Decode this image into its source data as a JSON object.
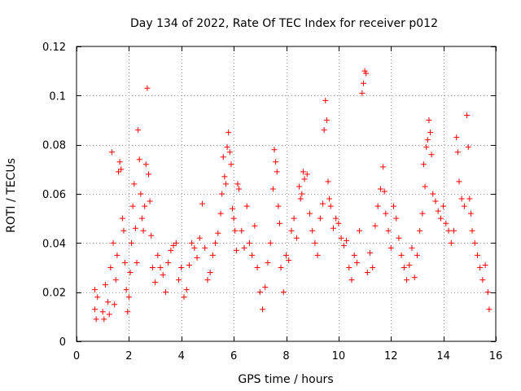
{
  "chart_data": {
    "type": "scatter",
    "title": "Day 134 of 2022, Rate Of TEC Index for receiver p012",
    "xlabel": "GPS time / hours",
    "ylabel": "ROTI / TECUs",
    "xlim": [
      0,
      16
    ],
    "ylim": [
      0,
      0.12
    ],
    "x_ticks": [
      0,
      2,
      4,
      6,
      8,
      10,
      12,
      14,
      16
    ],
    "x_tick_labels": [
      "0",
      "2",
      "4",
      "6",
      "8",
      "10",
      "12",
      "14",
      "16"
    ],
    "y_ticks": [
      0,
      0.02,
      0.04,
      0.06,
      0.08,
      0.1,
      0.12
    ],
    "y_tick_labels": [
      "0",
      "0.02",
      "0.04",
      "0.06",
      "0.08",
      "0.1",
      "0.12"
    ],
    "grid": true,
    "marker": "plus",
    "color": "#ff0000",
    "series": [
      {
        "name": "p012",
        "points": [
          [
            0.7,
            0.021
          ],
          [
            0.7,
            0.013
          ],
          [
            0.75,
            0.009
          ],
          [
            0.8,
            0.018
          ],
          [
            1.0,
            0.012
          ],
          [
            1.05,
            0.009
          ],
          [
            1.1,
            0.023
          ],
          [
            1.2,
            0.016
          ],
          [
            1.25,
            0.011
          ],
          [
            1.3,
            0.03
          ],
          [
            1.35,
            0.077
          ],
          [
            1.4,
            0.04
          ],
          [
            1.45,
            0.015
          ],
          [
            1.5,
            0.025
          ],
          [
            1.55,
            0.035
          ],
          [
            1.6,
            0.069
          ],
          [
            1.65,
            0.073
          ],
          [
            1.7,
            0.07
          ],
          [
            1.75,
            0.05
          ],
          [
            1.8,
            0.045
          ],
          [
            1.85,
            0.032
          ],
          [
            1.9,
            0.021
          ],
          [
            1.95,
            0.012
          ],
          [
            2.0,
            0.018
          ],
          [
            2.05,
            0.028
          ],
          [
            2.1,
            0.04
          ],
          [
            2.15,
            0.055
          ],
          [
            2.2,
            0.064
          ],
          [
            2.25,
            0.046
          ],
          [
            2.3,
            0.032
          ],
          [
            2.35,
            0.086
          ],
          [
            2.4,
            0.074
          ],
          [
            2.45,
            0.06
          ],
          [
            2.5,
            0.05
          ],
          [
            2.55,
            0.045
          ],
          [
            2.6,
            0.055
          ],
          [
            2.65,
            0.072
          ],
          [
            2.7,
            0.103
          ],
          [
            2.75,
            0.068
          ],
          [
            2.8,
            0.057
          ],
          [
            2.85,
            0.043
          ],
          [
            2.9,
            0.03
          ],
          [
            3.0,
            0.024
          ],
          [
            3.1,
            0.035
          ],
          [
            3.2,
            0.03
          ],
          [
            3.3,
            0.027
          ],
          [
            3.4,
            0.02
          ],
          [
            3.5,
            0.032
          ],
          [
            3.6,
            0.037
          ],
          [
            3.7,
            0.039
          ],
          [
            3.8,
            0.04
          ],
          [
            3.9,
            0.025
          ],
          [
            4.0,
            0.03
          ],
          [
            4.1,
            0.018
          ],
          [
            4.2,
            0.021
          ],
          [
            4.3,
            0.031
          ],
          [
            4.4,
            0.04
          ],
          [
            4.5,
            0.038
          ],
          [
            4.6,
            0.034
          ],
          [
            4.7,
            0.042
          ],
          [
            4.8,
            0.056
          ],
          [
            4.9,
            0.038
          ],
          [
            5.0,
            0.025
          ],
          [
            5.1,
            0.028
          ],
          [
            5.2,
            0.035
          ],
          [
            5.3,
            0.04
          ],
          [
            5.4,
            0.044
          ],
          [
            5.5,
            0.052
          ],
          [
            5.55,
            0.06
          ],
          [
            5.6,
            0.075
          ],
          [
            5.65,
            0.067
          ],
          [
            5.7,
            0.064
          ],
          [
            5.75,
            0.079
          ],
          [
            5.8,
            0.085
          ],
          [
            5.85,
            0.077
          ],
          [
            5.9,
            0.072
          ],
          [
            5.95,
            0.054
          ],
          [
            6.0,
            0.05
          ],
          [
            6.05,
            0.045
          ],
          [
            6.1,
            0.037
          ],
          [
            6.15,
            0.064
          ],
          [
            6.2,
            0.062
          ],
          [
            6.3,
            0.045
          ],
          [
            6.4,
            0.038
          ],
          [
            6.5,
            0.055
          ],
          [
            6.6,
            0.04
          ],
          [
            6.7,
            0.035
          ],
          [
            6.8,
            0.047
          ],
          [
            6.9,
            0.03
          ],
          [
            7.0,
            0.02
          ],
          [
            7.1,
            0.013
          ],
          [
            7.2,
            0.022
          ],
          [
            7.3,
            0.032
          ],
          [
            7.4,
            0.04
          ],
          [
            7.5,
            0.062
          ],
          [
            7.55,
            0.078
          ],
          [
            7.6,
            0.073
          ],
          [
            7.65,
            0.069
          ],
          [
            7.7,
            0.055
          ],
          [
            7.75,
            0.048
          ],
          [
            7.8,
            0.03
          ],
          [
            7.9,
            0.02
          ],
          [
            8.0,
            0.035
          ],
          [
            8.1,
            0.033
          ],
          [
            8.2,
            0.045
          ],
          [
            8.3,
            0.05
          ],
          [
            8.4,
            0.042
          ],
          [
            8.5,
            0.063
          ],
          [
            8.55,
            0.058
          ],
          [
            8.6,
            0.06
          ],
          [
            8.65,
            0.069
          ],
          [
            8.7,
            0.066
          ],
          [
            8.8,
            0.068
          ],
          [
            8.9,
            0.052
          ],
          [
            9.0,
            0.045
          ],
          [
            9.1,
            0.04
          ],
          [
            9.2,
            0.035
          ],
          [
            9.3,
            0.05
          ],
          [
            9.4,
            0.056
          ],
          [
            9.45,
            0.086
          ],
          [
            9.5,
            0.098
          ],
          [
            9.55,
            0.09
          ],
          [
            9.6,
            0.065
          ],
          [
            9.65,
            0.058
          ],
          [
            9.7,
            0.055
          ],
          [
            9.8,
            0.046
          ],
          [
            9.9,
            0.05
          ],
          [
            10.0,
            0.048
          ],
          [
            10.1,
            0.042
          ],
          [
            10.2,
            0.039
          ],
          [
            10.3,
            0.041
          ],
          [
            10.4,
            0.03
          ],
          [
            10.5,
            0.025
          ],
          [
            10.6,
            0.035
          ],
          [
            10.7,
            0.032
          ],
          [
            10.8,
            0.045
          ],
          [
            10.9,
            0.101
          ],
          [
            10.95,
            0.105
          ],
          [
            11.0,
            0.11
          ],
          [
            11.05,
            0.109
          ],
          [
            11.1,
            0.028
          ],
          [
            11.2,
            0.036
          ],
          [
            11.3,
            0.03
          ],
          [
            11.4,
            0.047
          ],
          [
            11.5,
            0.055
          ],
          [
            11.6,
            0.062
          ],
          [
            11.7,
            0.071
          ],
          [
            11.75,
            0.061
          ],
          [
            11.8,
            0.052
          ],
          [
            11.9,
            0.045
          ],
          [
            12.0,
            0.038
          ],
          [
            12.1,
            0.055
          ],
          [
            12.2,
            0.05
          ],
          [
            12.3,
            0.042
          ],
          [
            12.4,
            0.035
          ],
          [
            12.5,
            0.03
          ],
          [
            12.6,
            0.025
          ],
          [
            12.7,
            0.031
          ],
          [
            12.8,
            0.038
          ],
          [
            12.9,
            0.026
          ],
          [
            13.0,
            0.035
          ],
          [
            13.1,
            0.045
          ],
          [
            13.2,
            0.052
          ],
          [
            13.25,
            0.072
          ],
          [
            13.3,
            0.063
          ],
          [
            13.35,
            0.079
          ],
          [
            13.4,
            0.082
          ],
          [
            13.45,
            0.09
          ],
          [
            13.5,
            0.085
          ],
          [
            13.55,
            0.076
          ],
          [
            13.6,
            0.06
          ],
          [
            13.7,
            0.057
          ],
          [
            13.8,
            0.053
          ],
          [
            13.9,
            0.05
          ],
          [
            14.0,
            0.055
          ],
          [
            14.1,
            0.048
          ],
          [
            14.2,
            0.045
          ],
          [
            14.3,
            0.04
          ],
          [
            14.4,
            0.045
          ],
          [
            14.5,
            0.083
          ],
          [
            14.55,
            0.077
          ],
          [
            14.6,
            0.065
          ],
          [
            14.7,
            0.058
          ],
          [
            14.8,
            0.055
          ],
          [
            14.9,
            0.092
          ],
          [
            14.95,
            0.079
          ],
          [
            15.0,
            0.058
          ],
          [
            15.05,
            0.052
          ],
          [
            15.1,
            0.045
          ],
          [
            15.2,
            0.04
          ],
          [
            15.3,
            0.035
          ],
          [
            15.4,
            0.03
          ],
          [
            15.5,
            0.025
          ],
          [
            15.6,
            0.031
          ],
          [
            15.7,
            0.02
          ],
          [
            15.75,
            0.013
          ]
        ]
      }
    ]
  }
}
